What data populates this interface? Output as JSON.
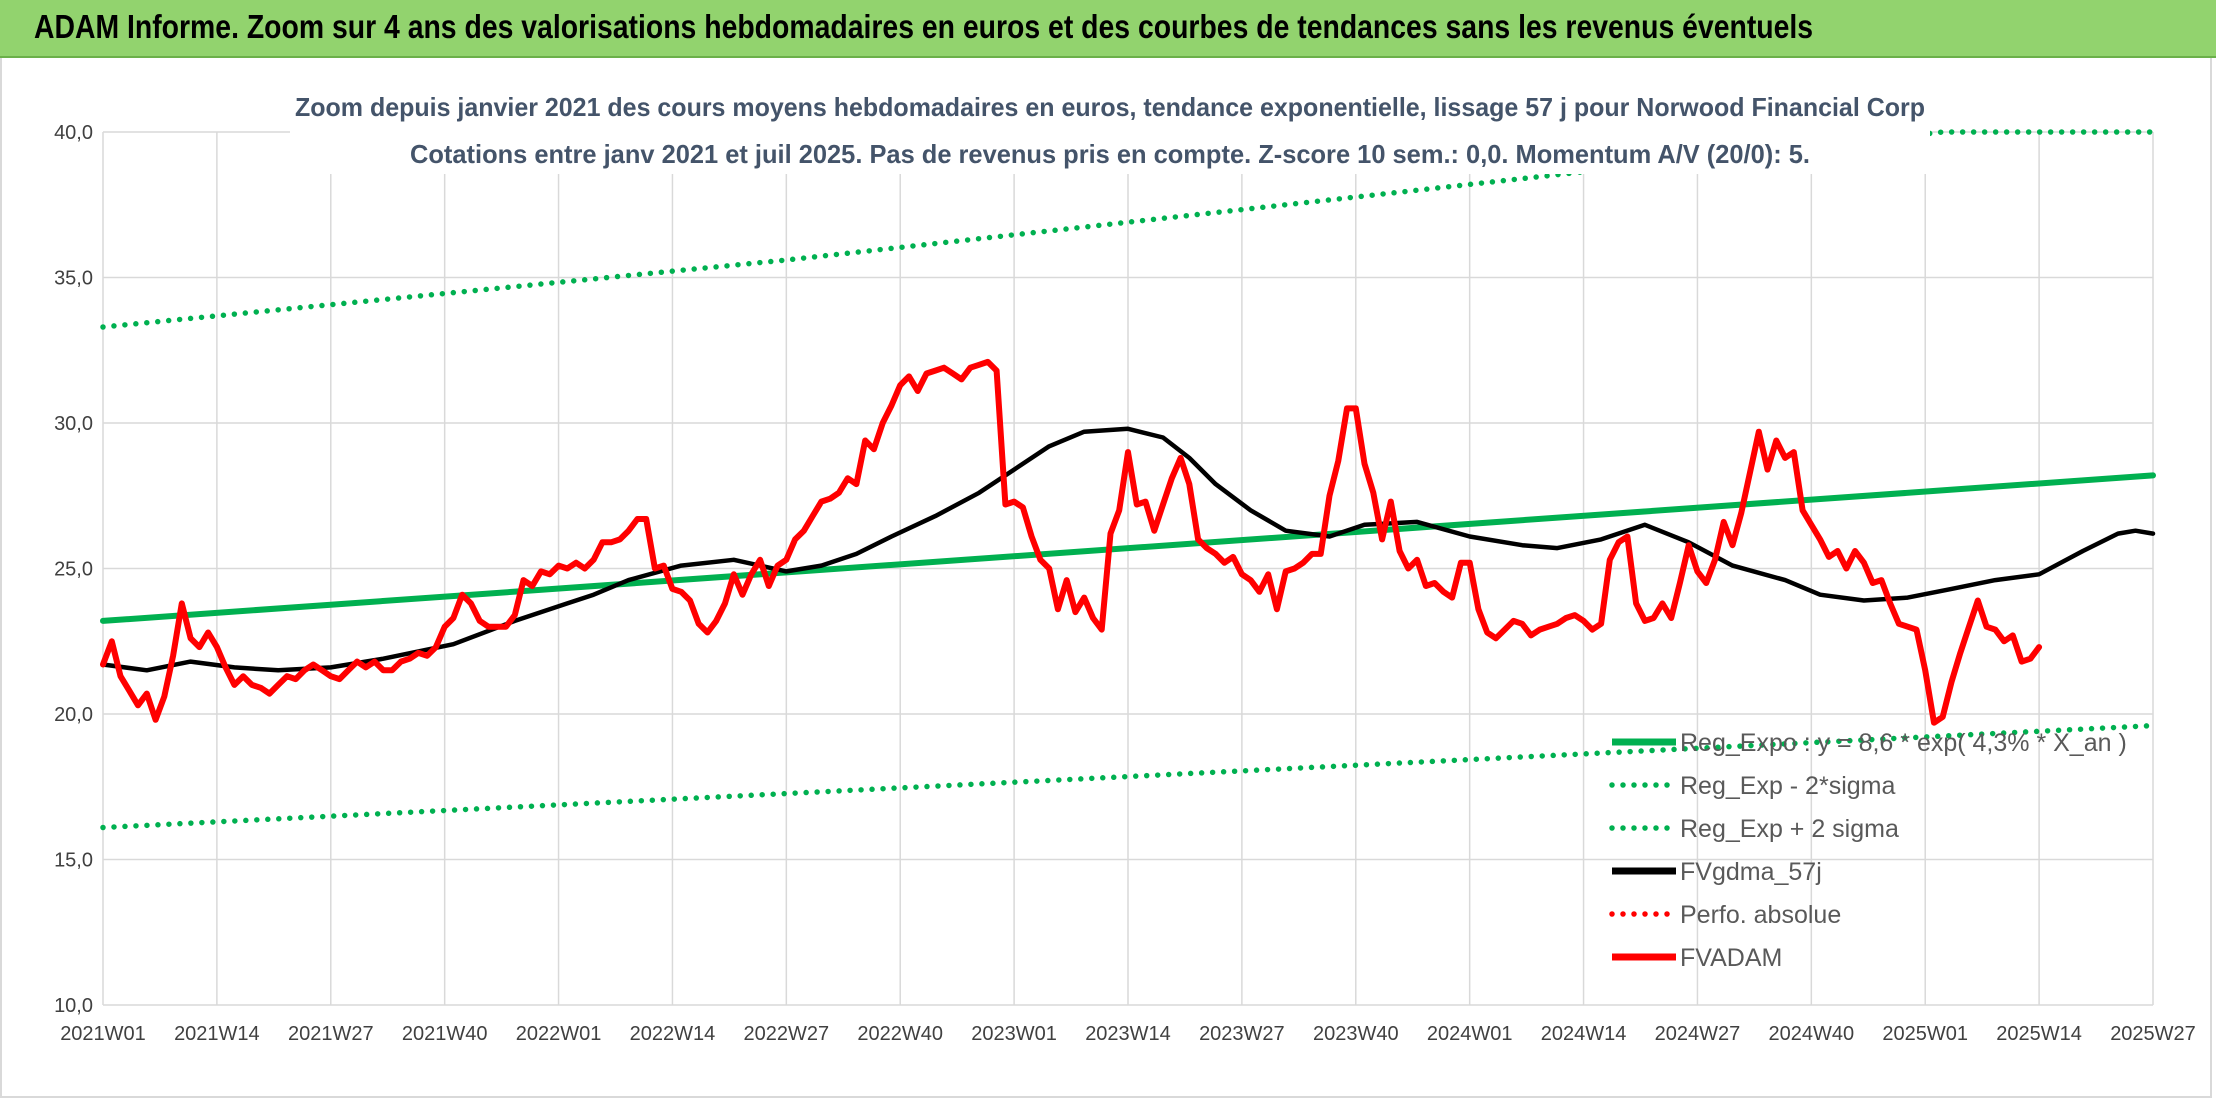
{
  "header": {
    "title": "ADAM Informe. Zoom sur 4 ans des valorisations hebdomadaires en euros et des courbes de tendances sans les revenus éventuels"
  },
  "chart_data": {
    "type": "line",
    "title": "Zoom depuis janvier 2021 des cours moyens hebdomadaires en euros, tendance exponentielle, lissage 57 j pour Norwood Financial Corp",
    "subtitle": "Cotations entre janv 2021 et juil 2025. Pas de revenus pris en compte. Z-score 10 sem.: 0,0. Momentum A/V (20/0): 5.",
    "xlabel": "",
    "ylabel": "",
    "ylim": [
      10,
      40
    ],
    "yticks": [
      "10,0",
      "15,0",
      "20,0",
      "25,0",
      "30,0",
      "35,0",
      "40,0"
    ],
    "x_tick_labels": [
      "2021W01",
      "2021W14",
      "2021W27",
      "2021W40",
      "2022W01",
      "2022W14",
      "2022W27",
      "2022W40",
      "2023W01",
      "2023W14",
      "2023W27",
      "2023W40",
      "2024W01",
      "2024W14",
      "2024W27",
      "2024W40",
      "2025W01",
      "2025W14",
      "2025W27"
    ],
    "x_range_weeks": [
      0,
      234
    ],
    "grid": true,
    "legend_position": "bottom-right",
    "series": [
      {
        "name": "Reg_Expo : y = 8,6 * exp( 4,3% * X_an )",
        "style": "solid",
        "color": "#00b050",
        "points": [
          [
            0,
            23.2
          ],
          [
            234,
            28.2
          ]
        ]
      },
      {
        "name": "Reg_Exp - 2*sigma",
        "style": "dotted",
        "color": "#00b050",
        "points": [
          [
            0,
            16.1
          ],
          [
            234,
            19.6
          ]
        ]
      },
      {
        "name": "Reg_Exp + 2 sigma",
        "style": "dotted",
        "color": "#00b050",
        "points": [
          [
            0,
            33.3
          ],
          [
            78,
            35.6
          ],
          [
            156,
            38.2
          ],
          [
            210,
            40.0
          ],
          [
            234,
            40.0
          ]
        ]
      },
      {
        "name": "FVgdma_57j",
        "style": "solid",
        "color": "#000000",
        "points": [
          [
            0,
            21.7
          ],
          [
            5,
            21.5
          ],
          [
            10,
            21.8
          ],
          [
            15,
            21.6
          ],
          [
            20,
            21.5
          ],
          [
            26,
            21.6
          ],
          [
            32,
            21.9
          ],
          [
            40,
            22.4
          ],
          [
            47,
            23.2
          ],
          [
            53,
            23.8
          ],
          [
            56,
            24.1
          ],
          [
            60,
            24.6
          ],
          [
            66,
            25.1
          ],
          [
            72,
            25.3
          ],
          [
            78,
            24.9
          ],
          [
            82,
            25.1
          ],
          [
            86,
            25.5
          ],
          [
            90,
            26.1
          ],
          [
            95,
            26.8
          ],
          [
            100,
            27.6
          ],
          [
            104,
            28.4
          ],
          [
            108,
            29.2
          ],
          [
            112,
            29.7
          ],
          [
            117,
            29.8
          ],
          [
            121,
            29.5
          ],
          [
            124,
            28.8
          ],
          [
            127,
            27.9
          ],
          [
            131,
            27.0
          ],
          [
            135,
            26.3
          ],
          [
            140,
            26.1
          ],
          [
            144,
            26.5
          ],
          [
            150,
            26.6
          ],
          [
            156,
            26.1
          ],
          [
            162,
            25.8
          ],
          [
            166,
            25.7
          ],
          [
            171,
            26.0
          ],
          [
            176,
            26.5
          ],
          [
            181,
            25.9
          ],
          [
            186,
            25.1
          ],
          [
            192,
            24.6
          ],
          [
            196,
            24.1
          ],
          [
            201,
            23.9
          ],
          [
            206,
            24.0
          ],
          [
            211,
            24.3
          ],
          [
            216,
            24.6
          ],
          [
            221,
            24.8
          ],
          [
            226,
            25.6
          ],
          [
            230,
            26.2
          ],
          [
            232,
            26.3
          ],
          [
            234,
            26.2
          ]
        ]
      },
      {
        "name": "Perfo. absolue",
        "style": "dotted",
        "color": "#ff0000",
        "points": []
      },
      {
        "name": "FVADAM",
        "style": "solid",
        "color": "#ff0000",
        "points": [
          [
            0,
            21.7
          ],
          [
            1,
            22.5
          ],
          [
            2,
            21.3
          ],
          [
            3,
            20.8
          ],
          [
            4,
            20.3
          ],
          [
            5,
            20.7
          ],
          [
            6,
            19.8
          ],
          [
            7,
            20.6
          ],
          [
            8,
            22.0
          ],
          [
            9,
            23.8
          ],
          [
            10,
            22.6
          ],
          [
            11,
            22.3
          ],
          [
            12,
            22.8
          ],
          [
            13,
            22.3
          ],
          [
            14,
            21.6
          ],
          [
            15,
            21.0
          ],
          [
            16,
            21.3
          ],
          [
            17,
            21.0
          ],
          [
            18,
            20.9
          ],
          [
            19,
            20.7
          ],
          [
            20,
            21.0
          ],
          [
            21,
            21.3
          ],
          [
            22,
            21.2
          ],
          [
            23,
            21.5
          ],
          [
            24,
            21.7
          ],
          [
            25,
            21.5
          ],
          [
            26,
            21.3
          ],
          [
            27,
            21.2
          ],
          [
            28,
            21.5
          ],
          [
            29,
            21.8
          ],
          [
            30,
            21.6
          ],
          [
            31,
            21.8
          ],
          [
            32,
            21.5
          ],
          [
            33,
            21.5
          ],
          [
            34,
            21.8
          ],
          [
            35,
            21.9
          ],
          [
            36,
            22.1
          ],
          [
            37,
            22.0
          ],
          [
            38,
            22.3
          ],
          [
            39,
            23.0
          ],
          [
            40,
            23.3
          ],
          [
            41,
            24.1
          ],
          [
            42,
            23.8
          ],
          [
            43,
            23.2
          ],
          [
            44,
            23.0
          ],
          [
            45,
            23.0
          ],
          [
            46,
            23.0
          ],
          [
            47,
            23.4
          ],
          [
            48,
            24.6
          ],
          [
            49,
            24.4
          ],
          [
            50,
            24.9
          ],
          [
            51,
            24.8
          ],
          [
            52,
            25.1
          ],
          [
            53,
            25.0
          ],
          [
            54,
            25.2
          ],
          [
            55,
            25.0
          ],
          [
            56,
            25.3
          ],
          [
            57,
            25.9
          ],
          [
            58,
            25.9
          ],
          [
            59,
            26.0
          ],
          [
            60,
            26.3
          ],
          [
            61,
            26.7
          ],
          [
            62,
            26.7
          ],
          [
            63,
            25.0
          ],
          [
            64,
            25.1
          ],
          [
            65,
            24.3
          ],
          [
            66,
            24.2
          ],
          [
            67,
            23.9
          ],
          [
            68,
            23.1
          ],
          [
            69,
            22.8
          ],
          [
            70,
            23.2
          ],
          [
            71,
            23.8
          ],
          [
            72,
            24.8
          ],
          [
            73,
            24.1
          ],
          [
            74,
            24.8
          ],
          [
            75,
            25.3
          ],
          [
            76,
            24.4
          ],
          [
            77,
            25.1
          ],
          [
            78,
            25.3
          ],
          [
            79,
            26.0
          ],
          [
            80,
            26.3
          ],
          [
            81,
            26.8
          ],
          [
            82,
            27.3
          ],
          [
            83,
            27.4
          ],
          [
            84,
            27.6
          ],
          [
            85,
            28.1
          ],
          [
            86,
            27.9
          ],
          [
            87,
            29.4
          ],
          [
            88,
            29.1
          ],
          [
            89,
            30.0
          ],
          [
            90,
            30.6
          ],
          [
            91,
            31.3
          ],
          [
            92,
            31.6
          ],
          [
            93,
            31.1
          ],
          [
            94,
            31.7
          ],
          [
            95,
            31.8
          ],
          [
            96,
            31.9
          ],
          [
            97,
            31.7
          ],
          [
            98,
            31.5
          ],
          [
            99,
            31.9
          ],
          [
            100,
            32.0
          ],
          [
            101,
            32.1
          ],
          [
            102,
            31.8
          ],
          [
            103,
            27.2
          ],
          [
            104,
            27.3
          ],
          [
            105,
            27.1
          ],
          [
            106,
            26.1
          ],
          [
            107,
            25.3
          ],
          [
            108,
            25.0
          ],
          [
            109,
            23.6
          ],
          [
            110,
            24.6
          ],
          [
            111,
            23.5
          ],
          [
            112,
            24.0
          ],
          [
            113,
            23.3
          ],
          [
            114,
            22.9
          ],
          [
            115,
            26.2
          ],
          [
            116,
            27.0
          ],
          [
            117,
            29.0
          ],
          [
            118,
            27.2
          ],
          [
            119,
            27.3
          ],
          [
            120,
            26.3
          ],
          [
            121,
            27.2
          ],
          [
            122,
            28.1
          ],
          [
            123,
            28.8
          ],
          [
            124,
            27.9
          ],
          [
            125,
            26.0
          ],
          [
            126,
            25.7
          ],
          [
            127,
            25.5
          ],
          [
            128,
            25.2
          ],
          [
            129,
            25.4
          ],
          [
            130,
            24.8
          ],
          [
            131,
            24.6
          ],
          [
            132,
            24.2
          ],
          [
            133,
            24.8
          ],
          [
            134,
            23.6
          ],
          [
            135,
            24.9
          ],
          [
            136,
            25.0
          ],
          [
            137,
            25.2
          ],
          [
            138,
            25.5
          ],
          [
            139,
            25.5
          ],
          [
            140,
            27.5
          ],
          [
            141,
            28.7
          ],
          [
            142,
            30.5
          ],
          [
            143,
            30.5
          ],
          [
            144,
            28.6
          ],
          [
            145,
            27.6
          ],
          [
            146,
            26.0
          ],
          [
            147,
            27.3
          ],
          [
            148,
            25.6
          ],
          [
            149,
            25.0
          ],
          [
            150,
            25.3
          ],
          [
            151,
            24.4
          ],
          [
            152,
            24.5
          ],
          [
            153,
            24.2
          ],
          [
            154,
            24.0
          ],
          [
            155,
            25.2
          ],
          [
            156,
            25.2
          ],
          [
            157,
            23.6
          ],
          [
            158,
            22.8
          ],
          [
            159,
            22.6
          ],
          [
            160,
            22.9
          ],
          [
            161,
            23.2
          ],
          [
            162,
            23.1
          ],
          [
            163,
            22.7
          ],
          [
            164,
            22.9
          ],
          [
            165,
            23.0
          ],
          [
            166,
            23.1
          ],
          [
            167,
            23.3
          ],
          [
            168,
            23.4
          ],
          [
            169,
            23.2
          ],
          [
            170,
            22.9
          ],
          [
            171,
            23.1
          ],
          [
            172,
            25.3
          ],
          [
            173,
            25.9
          ],
          [
            174,
            26.1
          ],
          [
            175,
            23.8
          ],
          [
            176,
            23.2
          ],
          [
            177,
            23.3
          ],
          [
            178,
            23.8
          ],
          [
            179,
            23.3
          ],
          [
            180,
            24.5
          ],
          [
            181,
            25.8
          ],
          [
            182,
            24.9
          ],
          [
            183,
            24.5
          ],
          [
            184,
            25.3
          ],
          [
            185,
            26.6
          ],
          [
            186,
            25.8
          ],
          [
            187,
            26.9
          ],
          [
            188,
            28.3
          ],
          [
            189,
            29.7
          ],
          [
            190,
            28.4
          ],
          [
            191,
            29.4
          ],
          [
            192,
            28.8
          ],
          [
            193,
            29.0
          ],
          [
            194,
            27.0
          ],
          [
            195,
            26.5
          ],
          [
            196,
            26.0
          ],
          [
            197,
            25.4
          ],
          [
            198,
            25.6
          ],
          [
            199,
            25.0
          ],
          [
            200,
            25.6
          ],
          [
            201,
            25.2
          ],
          [
            202,
            24.5
          ],
          [
            203,
            24.6
          ],
          [
            204,
            23.8
          ],
          [
            205,
            23.1
          ],
          [
            206,
            23.0
          ],
          [
            207,
            22.9
          ],
          [
            208,
            21.5
          ],
          [
            209,
            19.7
          ],
          [
            210,
            19.9
          ],
          [
            211,
            21.1
          ],
          [
            212,
            22.1
          ],
          [
            213,
            23.0
          ],
          [
            214,
            23.9
          ],
          [
            215,
            23.0
          ],
          [
            216,
            22.9
          ],
          [
            217,
            22.5
          ],
          [
            218,
            22.7
          ],
          [
            219,
            21.8
          ],
          [
            220,
            21.9
          ],
          [
            221,
            22.3
          ]
        ]
      }
    ]
  }
}
